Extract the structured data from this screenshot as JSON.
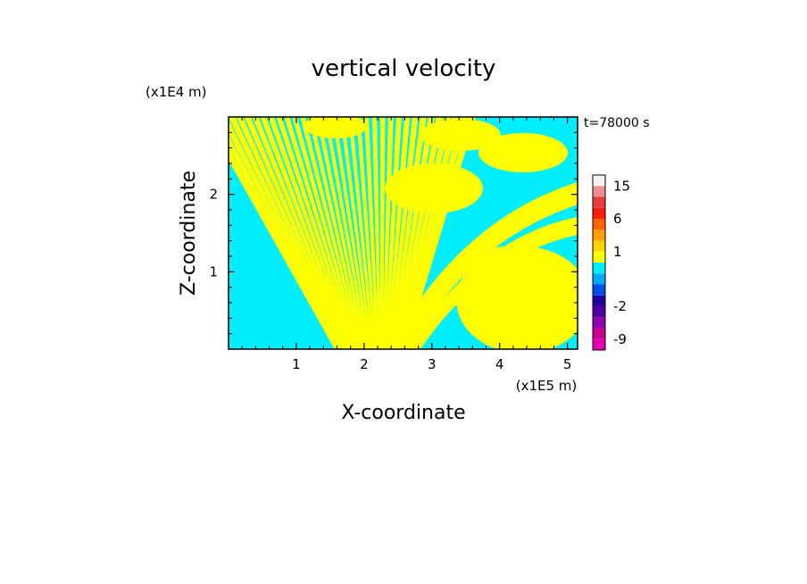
{
  "chart_data": {
    "type": "heatmap",
    "title": "vertical velocity",
    "xlabel": "X-coordinate",
    "ylabel": "Z-coordinate",
    "x_scale_label": "(x1E5 m)",
    "y_scale_label": "(x1E4 m)",
    "time_label": "t=78000 s",
    "xlim": [
      0,
      5.15
    ],
    "ylim": [
      0,
      3.0
    ],
    "x_ticks": [
      {
        "value": 1,
        "label": "1"
      },
      {
        "value": 2,
        "label": "2"
      },
      {
        "value": 3,
        "label": "3"
      },
      {
        "value": 4,
        "label": "4"
      },
      {
        "value": 5,
        "label": "5"
      }
    ],
    "y_ticks": [
      {
        "value": 1,
        "label": "1"
      },
      {
        "value": 2,
        "label": "2"
      }
    ],
    "field_colors": {
      "positive": "#ffff00",
      "negative": "#00eeff"
    },
    "colorbar": {
      "levels": [
        -12,
        -9,
        -6,
        -4,
        -2,
        -1,
        -0.5,
        0,
        0.5,
        1,
        2,
        4,
        6,
        9,
        12,
        15,
        20
      ],
      "colors": [
        "#e600b4",
        "#c8008c",
        "#8c00b4",
        "#5000a0",
        "#1e00a0",
        "#0050e6",
        "#00aaff",
        "#00eeff",
        "#ffff00",
        "#ffd200",
        "#ffa000",
        "#ff6400",
        "#ff1e00",
        "#e63c3c",
        "#f08c8c",
        "#fff0f0"
      ],
      "tick_labels": [
        {
          "value": -9,
          "label": "-9"
        },
        {
          "value": -2,
          "label": "-2"
        },
        {
          "value": 1,
          "label": "1"
        },
        {
          "value": 6,
          "label": "6"
        },
        {
          "value": 15,
          "label": "15"
        }
      ]
    }
  }
}
